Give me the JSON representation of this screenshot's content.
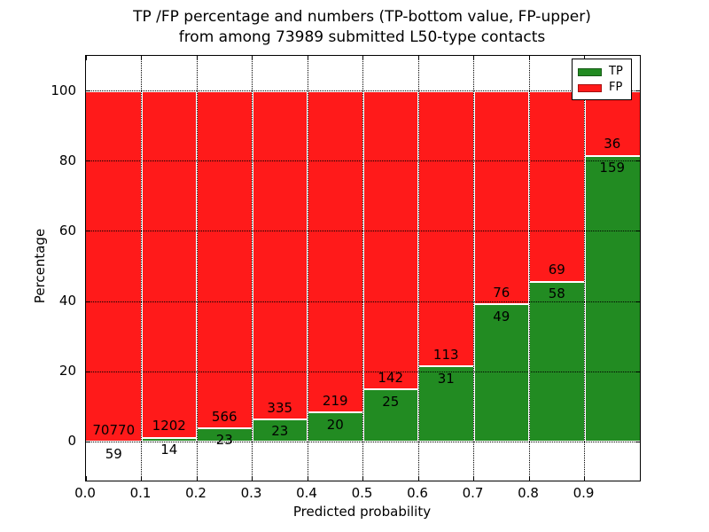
{
  "figure": {
    "title_line1": "TP /FP percentage and numbers (TP-bottom value, FP-upper)",
    "title_line2": "from among 73989 submitted L50-type contacts",
    "xlabel": "Predicted probability",
    "ylabel": "Percentage"
  },
  "legend": {
    "items": [
      {
        "label": "TP",
        "color": "#228b22"
      },
      {
        "label": "FP",
        "color": "#ff1a1a"
      }
    ]
  },
  "chart_data": {
    "type": "bar",
    "stacked": true,
    "title": "TP /FP percentage and numbers (TP-bottom value, FP-upper) from among 73989 submitted L50-type contacts",
    "xlabel": "Predicted probability",
    "ylabel": "Percentage",
    "total_contacts": 73989,
    "bin_edges": [
      0.0,
      0.1,
      0.2,
      0.3,
      0.4,
      0.5,
      0.6,
      0.7,
      0.8,
      0.9,
      1.0
    ],
    "categories": [
      "0.0-0.1",
      "0.1-0.2",
      "0.2-0.3",
      "0.3-0.4",
      "0.4-0.5",
      "0.5-0.6",
      "0.6-0.7",
      "0.7-0.8",
      "0.8-0.9",
      "0.9-1.0"
    ],
    "series": [
      {
        "name": "TP",
        "color": "#228b22",
        "counts": [
          59,
          14,
          23,
          23,
          20,
          25,
          31,
          49,
          58,
          159
        ]
      },
      {
        "name": "FP",
        "color": "#ff1a1a",
        "counts": [
          70770,
          1202,
          566,
          335,
          219,
          142,
          113,
          76,
          69,
          36
        ]
      }
    ],
    "tp_percent": [
      0.08,
      1.15,
      3.9,
      6.42,
      8.37,
      14.97,
      21.53,
      39.2,
      45.67,
      81.54
    ],
    "bars_stack_to": 100,
    "x_tick_labels": [
      "0.0",
      "0.1",
      "0.2",
      "0.3",
      "0.4",
      "0.5",
      "0.6",
      "0.7",
      "0.8",
      "0.9"
    ],
    "y_ticks": [
      0,
      20,
      40,
      60,
      80,
      100
    ],
    "y_tick_labels": [
      "0",
      "20",
      "40",
      "60",
      "80",
      "100"
    ],
    "xlim": [
      0,
      1
    ],
    "ylim": [
      -11,
      110
    ],
    "grid": "dotted",
    "legend_position": "upper right"
  },
  "colors": {
    "tp": "#228b22",
    "fp": "#ff1a1a",
    "background": "#ffffff",
    "spine": "#000000",
    "grid": "#000000",
    "text": "#000000"
  }
}
